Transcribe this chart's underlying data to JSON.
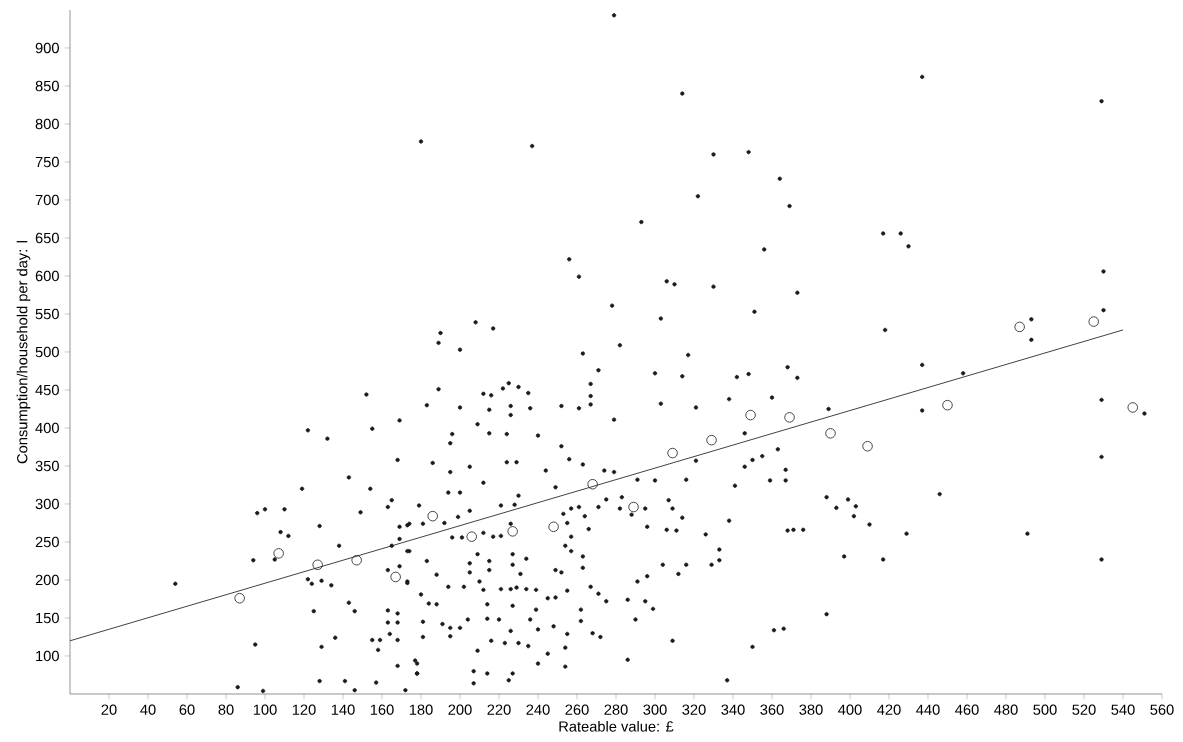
{
  "chart_data": {
    "type": "scatter",
    "xlabel": "Rateable value: £",
    "ylabel": "Consumption/household per day: l",
    "xlim": [
      0,
      560
    ],
    "ylim": [
      50,
      950
    ],
    "xticks": [
      20,
      40,
      60,
      80,
      100,
      120,
      140,
      160,
      180,
      200,
      220,
      240,
      260,
      280,
      300,
      320,
      340,
      360,
      380,
      400,
      420,
      440,
      460,
      480,
      500,
      520,
      540,
      560
    ],
    "yticks": [
      100,
      150,
      200,
      250,
      300,
      350,
      400,
      450,
      500,
      550,
      600,
      650,
      700,
      750,
      800,
      850,
      900
    ],
    "grid": false,
    "marker": "circle",
    "series": [
      {
        "color": "#1a1a1a",
        "x": [
          279,
          314,
          180,
          237,
          330,
          348,
          364,
          322,
          369,
          293,
          256,
          261,
          306,
          310,
          330,
          356,
          373,
          278,
          303,
          351,
          208,
          217,
          190,
          189,
          200,
          263,
          282,
          317,
          437,
          529,
          417,
          426,
          430,
          530,
          530,
          418,
          493,
          493,
          437,
          458,
          389,
          437,
          529,
          551,
          529,
          388,
          399,
          393,
          403,
          402,
          410,
          376,
          429,
          491,
          397,
          417,
          529,
          446,
          388,
          54,
          86,
          99,
          94,
          96,
          100,
          95,
          110,
          108,
          112,
          105,
          122,
          119,
          128,
          122,
          124,
          129,
          134,
          125,
          129,
          128,
          132,
          138,
          136,
          141,
          143,
          143,
          146,
          146,
          152,
          149,
          155,
          154,
          155,
          159,
          158,
          157,
          163,
          165,
          163,
          163,
          163,
          164,
          168,
          168,
          168,
          168,
          168,
          169,
          169,
          169,
          165,
          173,
          173,
          173,
          169,
          172,
          178,
          177,
          189,
          183,
          200,
          212,
          216,
          222,
          225,
          230,
          235,
          215,
          226,
          226,
          236,
          252,
          261,
          267,
          267,
          267,
          271,
          279,
          300,
          314,
          303,
          321,
          338,
          342,
          348,
          368,
          360,
          373,
          209,
          196,
          195,
          215,
          224,
          240,
          252,
          256,
          186,
          195,
          205,
          212,
          224,
          229,
          244,
          249,
          263,
          274,
          279,
          291,
          300,
          316,
          321,
          341,
          346,
          350,
          355,
          363,
          367,
          359,
          367,
          346,
          194,
          200,
          179,
          199,
          205,
          221,
          228,
          230,
          253,
          257,
          261,
          264,
          271,
          275,
          283,
          282,
          288,
          295,
          307,
          309,
          314,
          306,
          311,
          326,
          338,
          368,
          371,
          296,
          192,
          181,
          174,
          174,
          183,
          196,
          201,
          212,
          217,
          221,
          226,
          255,
          266,
          257,
          254,
          257,
          263,
          173,
          188,
          194,
          202,
          205,
          205,
          209,
          215,
          215,
          210,
          212,
          221,
          226,
          229,
          234,
          239,
          227,
          231,
          227,
          234,
          249,
          252,
          263,
          245,
          249,
          255,
          267,
          271,
          275,
          286,
          291,
          296,
          295,
          304,
          312,
          316,
          333,
          329,
          333,
          180,
          184,
          188,
          181,
          181,
          191,
          195,
          195,
          200,
          204,
          214,
          220,
          214,
          227,
          236,
          239,
          240,
          248,
          255,
          262,
          262,
          268,
          272,
          209,
          216,
          223,
          230,
          235,
          226,
          245,
          254,
          240,
          254,
          227,
          214,
          207,
          207,
          225,
          178,
          178,
          286,
          290,
          299,
          309,
          350,
          337,
          361,
          366
        ],
        "values": [
          943,
          840,
          777,
          771,
          760,
          763,
          728,
          705,
          692,
          671,
          622,
          599,
          593,
          589,
          586,
          635,
          578,
          561,
          544,
          553,
          539,
          531,
          525,
          512,
          503,
          498,
          509,
          496,
          862,
          830,
          656,
          656,
          639,
          606,
          555,
          529,
          543,
          516,
          483,
          472,
          425,
          423,
          437,
          419,
          362,
          309,
          306,
          295,
          297,
          284,
          273,
          266,
          261,
          261,
          231,
          227,
          227,
          313,
          155,
          195,
          59,
          54,
          226,
          288,
          293,
          115,
          293,
          263,
          258,
          227,
          397,
          320,
          271,
          201,
          195,
          199,
          193,
          159,
          112,
          67,
          386,
          245,
          124,
          67,
          335,
          170,
          159,
          55,
          444,
          289,
          399,
          320,
          121,
          121,
          108,
          65,
          296,
          305,
          213,
          160,
          144,
          129,
          156,
          144,
          121,
          87,
          358,
          410,
          270,
          254,
          245,
          238,
          196,
          272,
          218,
          55,
          77,
          94,
          451,
          430,
          427,
          445,
          443,
          452,
          459,
          454,
          446,
          424,
          429,
          417,
          426,
          429,
          426,
          431,
          458,
          442,
          476,
          411,
          472,
          468,
          432,
          427,
          438,
          467,
          471,
          480,
          440,
          466,
          405,
          392,
          380,
          393,
          392,
          390,
          376,
          359,
          354,
          342,
          349,
          328,
          355,
          355,
          344,
          322,
          352,
          344,
          342,
          332,
          331,
          332,
          357,
          324,
          349,
          358,
          363,
          372,
          345,
          331,
          331,
          393,
          315,
          315,
          298,
          283,
          291,
          298,
          299,
          311,
          287,
          294,
          296,
          284,
          296,
          306,
          309,
          294,
          286,
          294,
          305,
          294,
          282,
          266,
          265,
          260,
          278,
          265,
          266,
          270,
          275,
          274,
          274,
          238,
          225,
          256,
          256,
          262,
          257,
          258,
          274,
          275,
          267,
          257,
          245,
          238,
          231,
          198,
          207,
          191,
          191,
          210,
          222,
          234,
          225,
          213,
          198,
          187,
          188,
          188,
          190,
          188,
          187,
          220,
          208,
          234,
          228,
          213,
          210,
          216,
          176,
          177,
          186,
          191,
          182,
          172,
          174,
          198,
          205,
          172,
          220,
          208,
          220,
          240,
          220,
          226,
          181,
          169,
          168,
          145,
          125,
          142,
          137,
          126,
          137,
          148,
          149,
          148,
          168,
          166,
          148,
          161,
          135,
          139,
          129,
          161,
          146,
          130,
          125,
          107,
          120,
          117,
          117,
          113,
          133,
          103,
          111,
          90,
          86,
          77,
          77,
          80,
          64,
          68,
          90,
          77,
          95,
          148,
          162,
          120,
          112,
          68,
          134,
          136
        ]
      },
      {
        "color": "#1a1a1a",
        "x": [
          87,
          107,
          127,
          147,
          167,
          186,
          206,
          227,
          248,
          268,
          289,
          309,
          329,
          349,
          369,
          390,
          409,
          450,
          487,
          525,
          545
        ],
        "values": [
          176,
          235,
          220,
          226,
          204,
          284,
          257,
          264,
          270,
          326,
          296,
          367,
          384,
          417,
          414,
          393,
          376,
          430,
          533,
          540,
          427
        ]
      },
      {
        "type": "line",
        "color": "#333333",
        "marker": "none",
        "x": [
          0,
          540
        ],
        "values": [
          120,
          529
        ]
      }
    ]
  }
}
